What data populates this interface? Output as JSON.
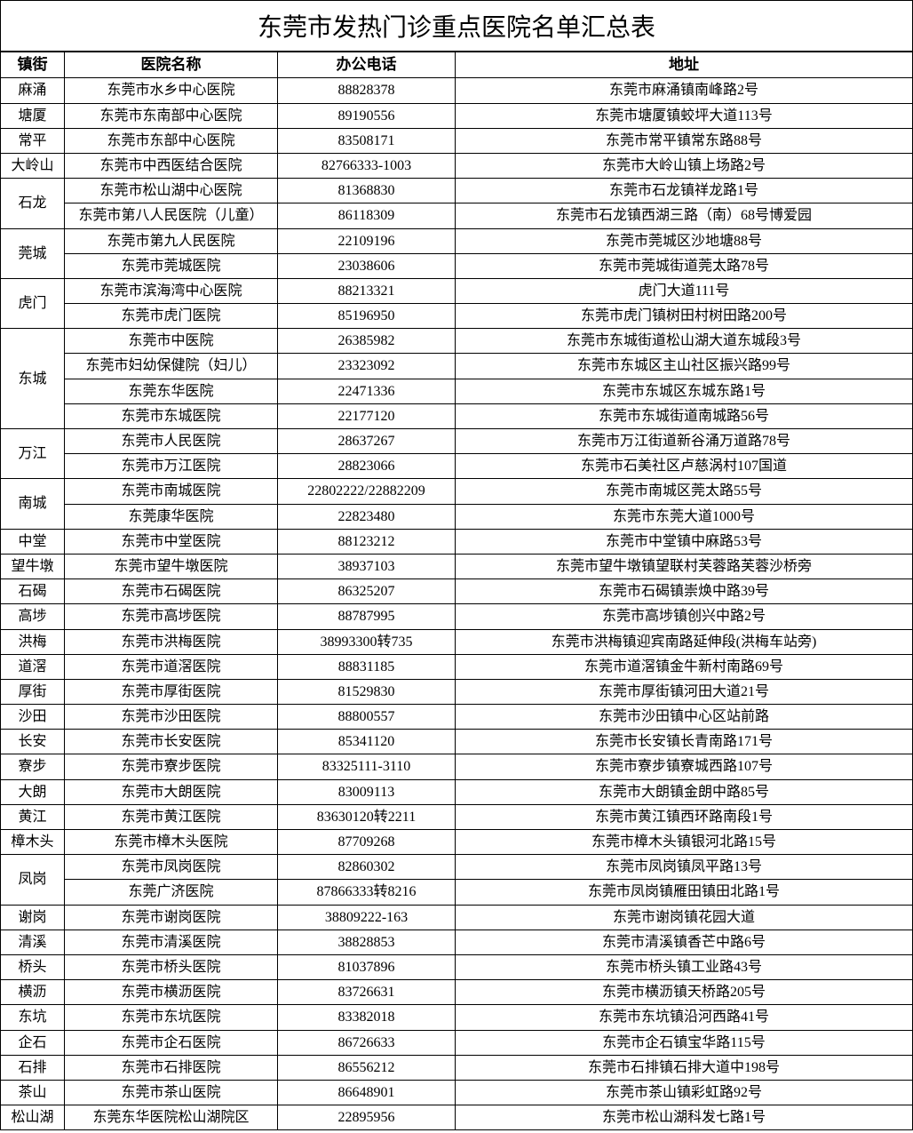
{
  "title": "东莞市发热门诊重点医院名单汇总表",
  "headers": {
    "town": "镇街",
    "hospital": "医院名称",
    "phone": "办公电话",
    "address": "地址"
  },
  "groups": [
    {
      "town": "麻涌",
      "rows": [
        {
          "hospital": "东莞市水乡中心医院",
          "phone": "88828378",
          "address": "东莞市麻涌镇南峰路2号"
        }
      ]
    },
    {
      "town": "塘厦",
      "rows": [
        {
          "hospital": "东莞市东南部中心医院",
          "phone": "89190556",
          "address": "东莞市塘厦镇蛟坪大道113号"
        }
      ]
    },
    {
      "town": "常平",
      "rows": [
        {
          "hospital": "东莞市东部中心医院",
          "phone": "83508171",
          "address": "东莞市常平镇常东路88号"
        }
      ]
    },
    {
      "town": "大岭山",
      "rows": [
        {
          "hospital": "东莞市中西医结合医院",
          "phone": "82766333-1003",
          "address": "东莞市大岭山镇上场路2号"
        }
      ]
    },
    {
      "town": "石龙",
      "rows": [
        {
          "hospital": "东莞市松山湖中心医院",
          "phone": "81368830",
          "address": "东莞市石龙镇祥龙路1号"
        },
        {
          "hospital": "东莞市第八人民医院（儿童）",
          "phone": "86118309",
          "address": "东莞市石龙镇西湖三路（南）68号博爱园"
        }
      ]
    },
    {
      "town": "莞城",
      "rows": [
        {
          "hospital": "东莞市第九人民医院",
          "phone": "22109196",
          "address": "东莞市莞城区沙地塘88号"
        },
        {
          "hospital": "东莞市莞城医院",
          "phone": "23038606",
          "address": "东莞市莞城街道莞太路78号"
        }
      ]
    },
    {
      "town": "虎门",
      "rows": [
        {
          "hospital": "东莞市滨海湾中心医院",
          "phone": "88213321",
          "address": "虎门大道111号"
        },
        {
          "hospital": "东莞市虎门医院",
          "phone": "85196950",
          "address": "东莞市虎门镇树田村树田路200号"
        }
      ]
    },
    {
      "town": "东城",
      "rows": [
        {
          "hospital": "东莞市中医院",
          "phone": "26385982",
          "address": "东莞市东城街道松山湖大道东城段3号"
        },
        {
          "hospital": "东莞市妇幼保健院（妇儿）",
          "phone": "23323092",
          "address": "东莞市东城区主山社区振兴路99号"
        },
        {
          "hospital": "东莞东华医院",
          "phone": "22471336",
          "address": "东莞市东城区东城东路1号"
        },
        {
          "hospital": "东莞市东城医院",
          "phone": "22177120",
          "address": "东莞市东城街道南城路56号"
        }
      ]
    },
    {
      "town": "万江",
      "rows": [
        {
          "hospital": "东莞市人民医院",
          "phone": "28637267",
          "address": "东莞市万江街道新谷涌万道路78号"
        },
        {
          "hospital": "东莞市万江医院",
          "phone": "28823066",
          "address": "东莞市石美社区卢慈涡村107国道"
        }
      ]
    },
    {
      "town": "南城",
      "rows": [
        {
          "hospital": "东莞市南城医院",
          "phone": "22802222/22882209",
          "address": "东莞市南城区莞太路55号"
        },
        {
          "hospital": "东莞康华医院",
          "phone": "22823480",
          "address": "东莞市东莞大道1000号"
        }
      ]
    },
    {
      "town": "中堂",
      "rows": [
        {
          "hospital": "东莞市中堂医院",
          "phone": "88123212",
          "address": "东莞市中堂镇中麻路53号"
        }
      ]
    },
    {
      "town": "望牛墩",
      "rows": [
        {
          "hospital": "东莞市望牛墩医院",
          "phone": "38937103",
          "address": "东莞市望牛墩镇望联村芙蓉路芙蓉沙桥旁"
        }
      ]
    },
    {
      "town": "石碣",
      "rows": [
        {
          "hospital": "东莞市石碣医院",
          "phone": "86325207",
          "address": "东莞市石碣镇崇焕中路39号"
        }
      ]
    },
    {
      "town": "高埗",
      "rows": [
        {
          "hospital": "东莞市高埗医院",
          "phone": "88787995",
          "address": "东莞市高埗镇创兴中路2号"
        }
      ]
    },
    {
      "town": "洪梅",
      "rows": [
        {
          "hospital": "东莞市洪梅医院",
          "phone": "38993300转735",
          "address": "东莞市洪梅镇迎宾南路延伸段(洪梅车站旁)"
        }
      ]
    },
    {
      "town": "道滘",
      "rows": [
        {
          "hospital": "东莞市道滘医院",
          "phone": "88831185",
          "address": "东莞市道滘镇金牛新村南路69号"
        }
      ]
    },
    {
      "town": "厚街",
      "rows": [
        {
          "hospital": "东莞市厚街医院",
          "phone": "81529830",
          "address": "东莞市厚街镇河田大道21号"
        }
      ]
    },
    {
      "town": "沙田",
      "rows": [
        {
          "hospital": "东莞市沙田医院",
          "phone": "88800557",
          "address": "东莞市沙田镇中心区站前路"
        }
      ]
    },
    {
      "town": "长安",
      "rows": [
        {
          "hospital": "东莞市长安医院",
          "phone": "85341120",
          "address": "东莞市长安镇长青南路171号"
        }
      ]
    },
    {
      "town": "寮步",
      "rows": [
        {
          "hospital": "东莞市寮步医院",
          "phone": "83325111-3110",
          "address": "东莞市寮步镇寮城西路107号"
        }
      ]
    },
    {
      "town": "大朗",
      "rows": [
        {
          "hospital": "东莞市大朗医院",
          "phone": "83009113",
          "address": "东莞市大朗镇金朗中路85号"
        }
      ]
    },
    {
      "town": "黄江",
      "rows": [
        {
          "hospital": "东莞市黄江医院",
          "phone": "83630120转2211",
          "address": "东莞市黄江镇西环路南段1号"
        }
      ]
    },
    {
      "town": "樟木头",
      "rows": [
        {
          "hospital": "东莞市樟木头医院",
          "phone": "87709268",
          "address": "东莞市樟木头镇银河北路15号"
        }
      ]
    },
    {
      "town": "凤岗",
      "rows": [
        {
          "hospital": "东莞市凤岗医院",
          "phone": "82860302",
          "address": "东莞市凤岗镇凤平路13号"
        },
        {
          "hospital": "东莞广济医院",
          "phone": "87866333转8216",
          "address": "东莞市凤岗镇雁田镇田北路1号"
        }
      ]
    },
    {
      "town": "谢岗",
      "rows": [
        {
          "hospital": "东莞市谢岗医院",
          "phone": "38809222-163",
          "address": "东莞市谢岗镇花园大道"
        }
      ]
    },
    {
      "town": "清溪",
      "rows": [
        {
          "hospital": "东莞市清溪医院",
          "phone": "38828853",
          "address": "东莞市清溪镇香芒中路6号"
        }
      ]
    },
    {
      "town": "桥头",
      "rows": [
        {
          "hospital": "东莞市桥头医院",
          "phone": "81037896",
          "address": "东莞市桥头镇工业路43号"
        }
      ]
    },
    {
      "town": "横沥",
      "rows": [
        {
          "hospital": "东莞市横沥医院",
          "phone": "83726631",
          "address": "东莞市横沥镇天桥路205号"
        }
      ]
    },
    {
      "town": "东坑",
      "rows": [
        {
          "hospital": "东莞市东坑医院",
          "phone": "83382018",
          "address": "东莞市东坑镇沿河西路41号"
        }
      ]
    },
    {
      "town": "企石",
      "rows": [
        {
          "hospital": "东莞市企石医院",
          "phone": "86726633",
          "address": "东莞市企石镇宝华路115号"
        }
      ]
    },
    {
      "town": "石排",
      "rows": [
        {
          "hospital": "东莞市石排医院",
          "phone": "86556212",
          "address": "东莞市石排镇石排大道中198号"
        }
      ]
    },
    {
      "town": "茶山",
      "rows": [
        {
          "hospital": "东莞市茶山医院",
          "phone": "86648901",
          "address": "东莞市茶山镇彩虹路92号"
        }
      ]
    },
    {
      "town": "松山湖",
      "rows": [
        {
          "hospital": "东莞东华医院松山湖院区",
          "phone": "22895956",
          "address": "东莞市松山湖科发七路1号"
        }
      ]
    }
  ]
}
